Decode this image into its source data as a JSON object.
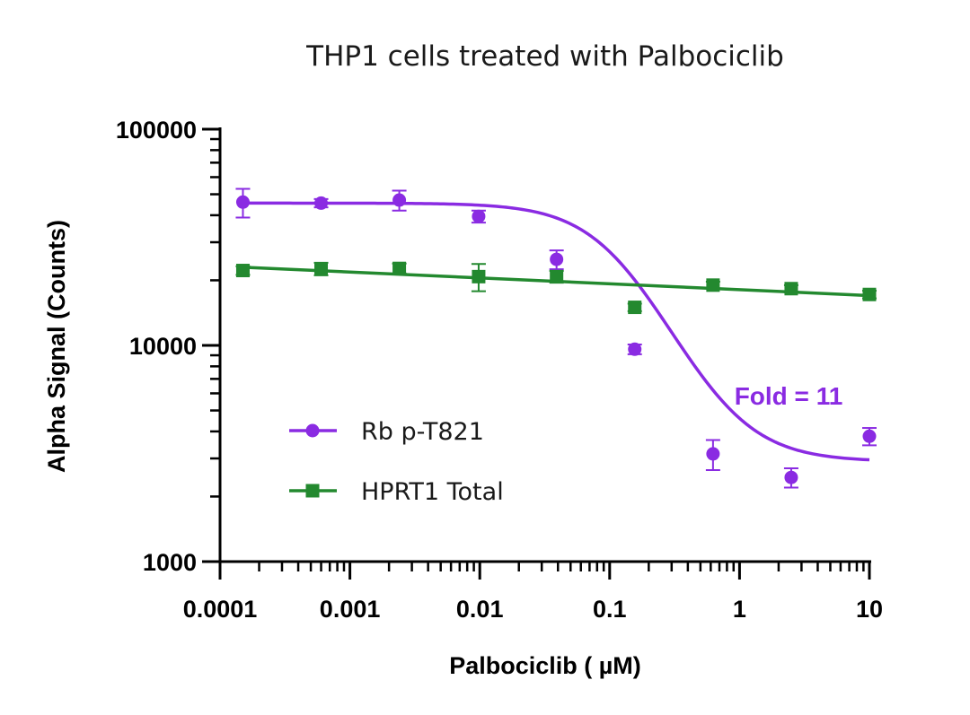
{
  "chart_data": {
    "type": "scatter",
    "title": "THP1 cells treated with Palbociclib",
    "xlabel": "Palbociclib ( µM)",
    "ylabel": "Alpha Signal (Counts)",
    "xscale": "log",
    "yscale": "log",
    "xlim": [
      0.0001,
      10
    ],
    "ylim": [
      1000,
      100000
    ],
    "x_ticks": [
      {
        "value": 0.0001,
        "label": "0.0001"
      },
      {
        "value": 0.001,
        "label": "0.001"
      },
      {
        "value": 0.01,
        "label": "0.01"
      },
      {
        "value": 0.1,
        "label": "0.1"
      },
      {
        "value": 1,
        "label": "1"
      },
      {
        "value": 10,
        "label": "10"
      }
    ],
    "y_ticks": [
      {
        "value": 1000,
        "label": "1000"
      },
      {
        "value": 10000,
        "label": "10000"
      },
      {
        "value": 100000,
        "label": "100000"
      }
    ],
    "grid": false,
    "legend_position": "bottom-left",
    "series": [
      {
        "name": "Rb p-T821",
        "color": "#8a2be2",
        "marker": "circle",
        "x": [
          0.00015,
          0.0006,
          0.0024,
          0.0098,
          0.039,
          0.156,
          0.625,
          2.5,
          10
        ],
        "y": [
          46000,
          45500,
          47000,
          39500,
          25000,
          9600,
          3150,
          2450,
          3800
        ],
        "err": [
          7000,
          2000,
          5000,
          2500,
          2500,
          500,
          500,
          250,
          350
        ],
        "fit": {
          "model": "four-parameter logistic",
          "top": 45500,
          "bottom": 2900,
          "ic50": 0.12,
          "hill": 1.5
        }
      },
      {
        "name": "HPRT1 Total",
        "color": "#23892f",
        "marker": "square",
        "x": [
          0.00015,
          0.0006,
          0.0024,
          0.0098,
          0.039,
          0.156,
          0.625,
          2.5,
          10
        ],
        "y": [
          22200,
          22600,
          22700,
          20800,
          20800,
          15000,
          19000,
          18300,
          17200
        ],
        "err": [
          1000,
          1500,
          1200,
          3000,
          1300,
          600,
          700,
          700,
          700
        ],
        "fit": {
          "model": "linear on log-log",
          "y_at_xmin": 23000,
          "y_at_xmax": 17000
        }
      }
    ],
    "annotations": [
      {
        "text": "Fold = 11",
        "color": "#8a2be2"
      }
    ]
  }
}
